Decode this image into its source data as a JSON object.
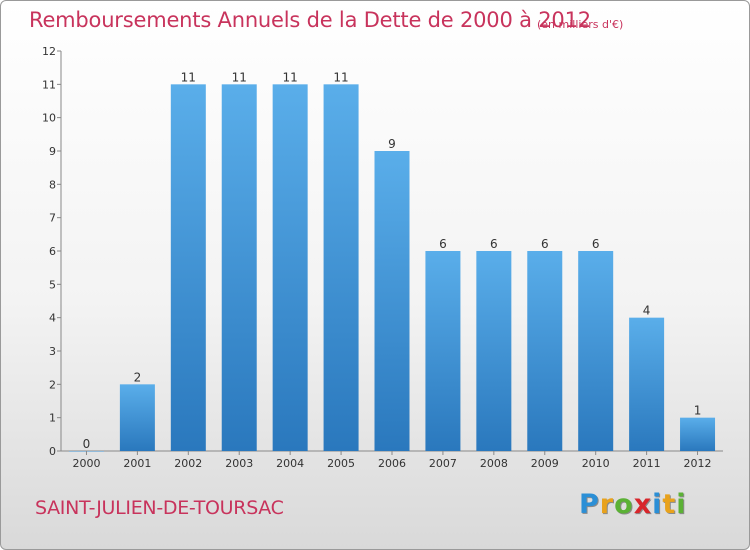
{
  "header": {
    "title": "Remboursements Annuels de la Dette de 2000 à 2012",
    "unit": "(en milliers d'€)"
  },
  "footer": {
    "commune": "SAINT-JULIEN-DE-TOURSAC",
    "logo_letters": [
      "P",
      "r",
      "o",
      "x",
      "i",
      "t",
      "i"
    ]
  },
  "colors": {
    "title": "#c8335c",
    "bar_top": "#5aaeea",
    "bar_bottom": "#2a78bd"
  },
  "chart_data": {
    "type": "bar",
    "title": "Remboursements Annuels de la Dette de 2000 à 2012",
    "categories": [
      "2000",
      "2001",
      "2002",
      "2003",
      "2004",
      "2005",
      "2006",
      "2007",
      "2008",
      "2009",
      "2010",
      "2011",
      "2012"
    ],
    "values": [
      0,
      2,
      11,
      11,
      11,
      11,
      9,
      6,
      6,
      6,
      6,
      4,
      1
    ],
    "ylim": [
      0,
      12
    ],
    "yticks": [
      0,
      1,
      2,
      3,
      4,
      5,
      6,
      7,
      8,
      9,
      10,
      11,
      12
    ],
    "grid": false,
    "legend": "none"
  }
}
